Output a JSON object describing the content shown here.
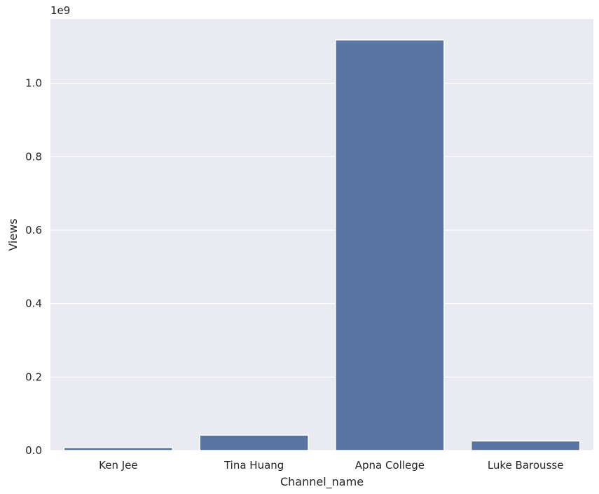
{
  "chart_data": {
    "type": "bar",
    "title": "",
    "xlabel": "Channel_name",
    "ylabel": "Views",
    "y_offset_label": "1e9",
    "categories": [
      "Ken Jee",
      "Tina Huang",
      "Apna College",
      "Luke Barousse"
    ],
    "values": [
      8000000,
      42000000,
      1118000000,
      26000000
    ],
    "ylim": [
      0,
      1175000000
    ],
    "y_ticks": [
      0,
      200000000,
      400000000,
      600000000,
      800000000,
      1000000000
    ],
    "y_tick_labels": [
      "0.0",
      "0.2",
      "0.4",
      "0.6",
      "0.8",
      "1.0"
    ],
    "grid": true,
    "colors": {
      "bar": "#5975a4",
      "plot_bg": "#eaeaf2",
      "grid": "#ffffff",
      "text": "#262626"
    }
  }
}
